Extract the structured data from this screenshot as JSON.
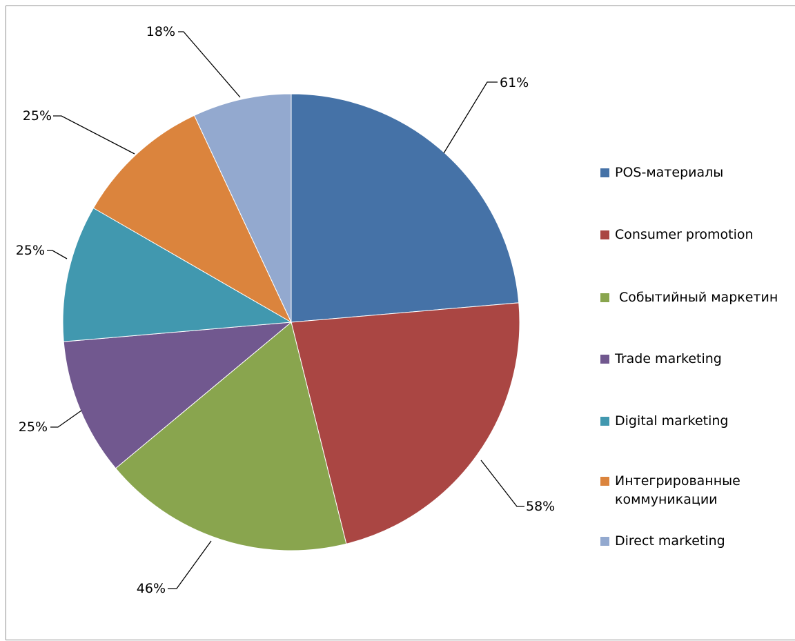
{
  "chart_data": {
    "type": "pie",
    "title": "",
    "series": [
      {
        "values": [
          61,
          58,
          46,
          25,
          25,
          25,
          18
        ]
      }
    ],
    "categories": [
      "POS-материалы",
      "Consumer promotion",
      " Событийный маркетин",
      "Trade marketing",
      "Digital marketing",
      "Интегрированные\nкоммуникации",
      "Direct marketing"
    ],
    "data_labels": [
      "61%",
      "58%",
      "46%",
      "25%",
      "25%",
      "25%",
      "18%"
    ],
    "colors": [
      "#4572A7",
      "#AA4643",
      "#89A54E",
      "#71588F",
      "#4198AF",
      "#DB843D",
      "#93A9CF"
    ],
    "legend_position": "right",
    "start_angle": "12 o'clock",
    "direction": "clockwise"
  }
}
